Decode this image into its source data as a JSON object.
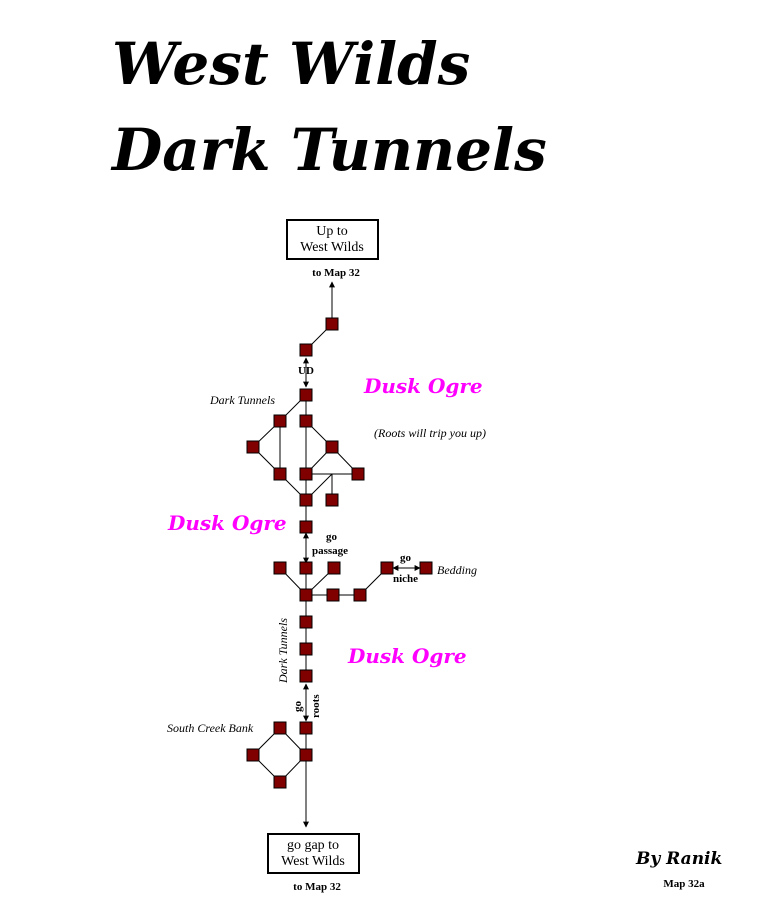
{
  "title": {
    "line1": "West Wilds",
    "line2": "Dark Tunnels"
  },
  "exits": {
    "top_box_line1": "Up to",
    "top_box_line2": "West Wilds",
    "top_map_ref": "to Map 32",
    "bottom_box_line1": "go gap to",
    "bottom_box_line2": "West Wilds",
    "bottom_map_ref": "to Map 32"
  },
  "labels": {
    "ud": "UD",
    "dark_tunnels_top": "Dark Tunnels",
    "roots_note": "(Roots will trip you up)",
    "go_passage_go": "go",
    "go_passage_passage": "passage",
    "go_niche_go": "go",
    "go_niche_niche": "niche",
    "bedding": "Bedding",
    "dark_tunnels_vertical": "Dark Tunnels",
    "go_roots_go": "go",
    "go_roots_roots": "roots",
    "south_creek_bank": "South Creek Bank"
  },
  "mobs": {
    "mob1": "Dusk Ogre",
    "mob2": "Dusk Ogre",
    "mob3": "Dusk Ogre"
  },
  "credit": {
    "author": "By Ranik",
    "map_id": "Map 32a"
  },
  "colors": {
    "room_fill": "#800000",
    "mob_text": "#ff00ff"
  }
}
